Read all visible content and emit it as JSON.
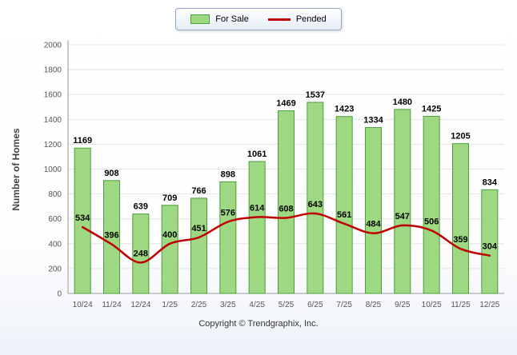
{
  "legend": {
    "for_sale": "For Sale",
    "pended": "Pended"
  },
  "copyright": "Copyright © Trendgraphix, Inc.",
  "chart_data": {
    "type": "bar",
    "title": "",
    "xlabel": "",
    "ylabel": "Number of Homes",
    "ylim": [
      0,
      2000
    ],
    "ytick": 200,
    "grid": true,
    "legend_position": "top",
    "categories": [
      "10/24",
      "11/24",
      "12/24",
      "1/25",
      "2/25",
      "3/25",
      "4/25",
      "5/25",
      "6/25",
      "7/25",
      "8/25",
      "9/25",
      "10/25",
      "11/25",
      "12/25"
    ],
    "series": [
      {
        "name": "For Sale",
        "type": "bar",
        "color": "#9fd882",
        "border": "#4a9e3c",
        "values": [
          1169,
          908,
          639,
          709,
          766,
          898,
          1061,
          1469,
          1537,
          1423,
          1334,
          1480,
          1425,
          1205,
          834
        ]
      },
      {
        "name": "Pended",
        "type": "line",
        "color": "#c00000",
        "values": [
          534,
          396,
          248,
          400,
          451,
          576,
          614,
          608,
          643,
          561,
          484,
          547,
          506,
          359,
          304
        ]
      }
    ]
  }
}
